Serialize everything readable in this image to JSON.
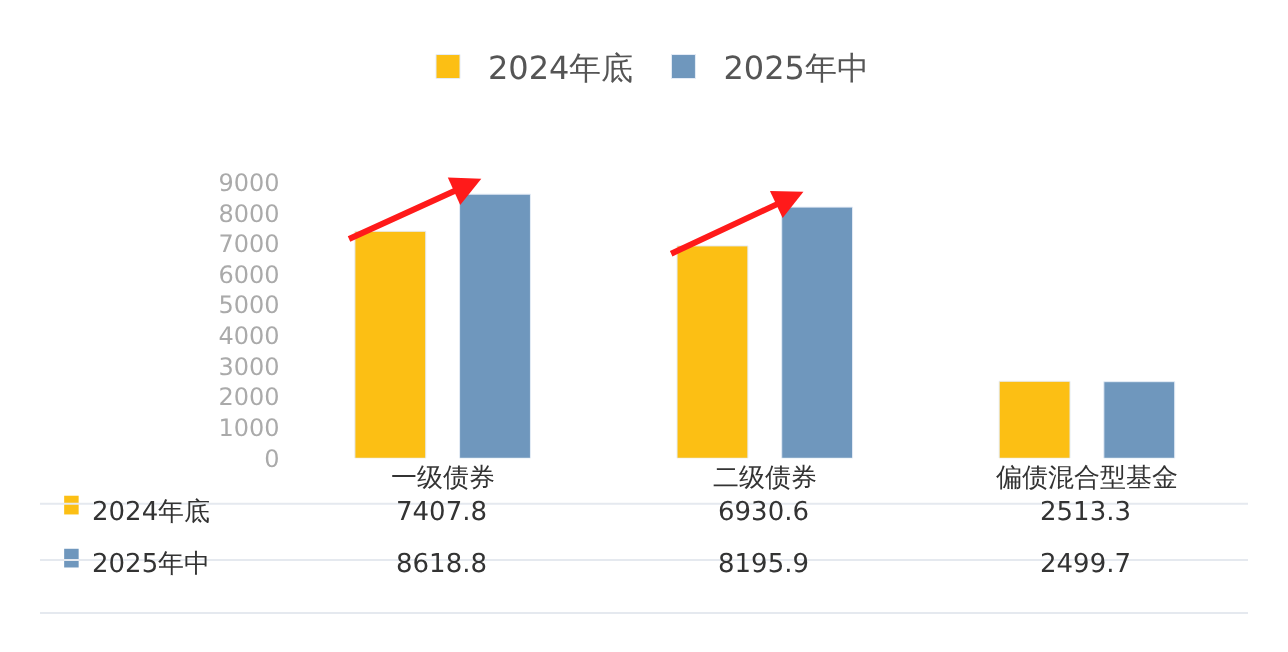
{
  "chart_data": {
    "type": "bar",
    "categories": [
      "一级债券",
      "二级债券",
      "偏债混合型基金"
    ],
    "series": [
      {
        "name": "2024年底",
        "color": "#fcbf14",
        "values": [
          7407.8,
          6930.6,
          2513.3
        ]
      },
      {
        "name": "2025年中",
        "color": "#6f97bd",
        "values": [
          8618.8,
          8195.9,
          2499.7
        ]
      }
    ],
    "ylim": [
      0,
      9000
    ],
    "yticks": [
      0,
      1000,
      2000,
      3000,
      4000,
      5000,
      6000,
      7000,
      8000,
      9000
    ],
    "grid": false,
    "legend": "top",
    "data_labels": true
  }
}
